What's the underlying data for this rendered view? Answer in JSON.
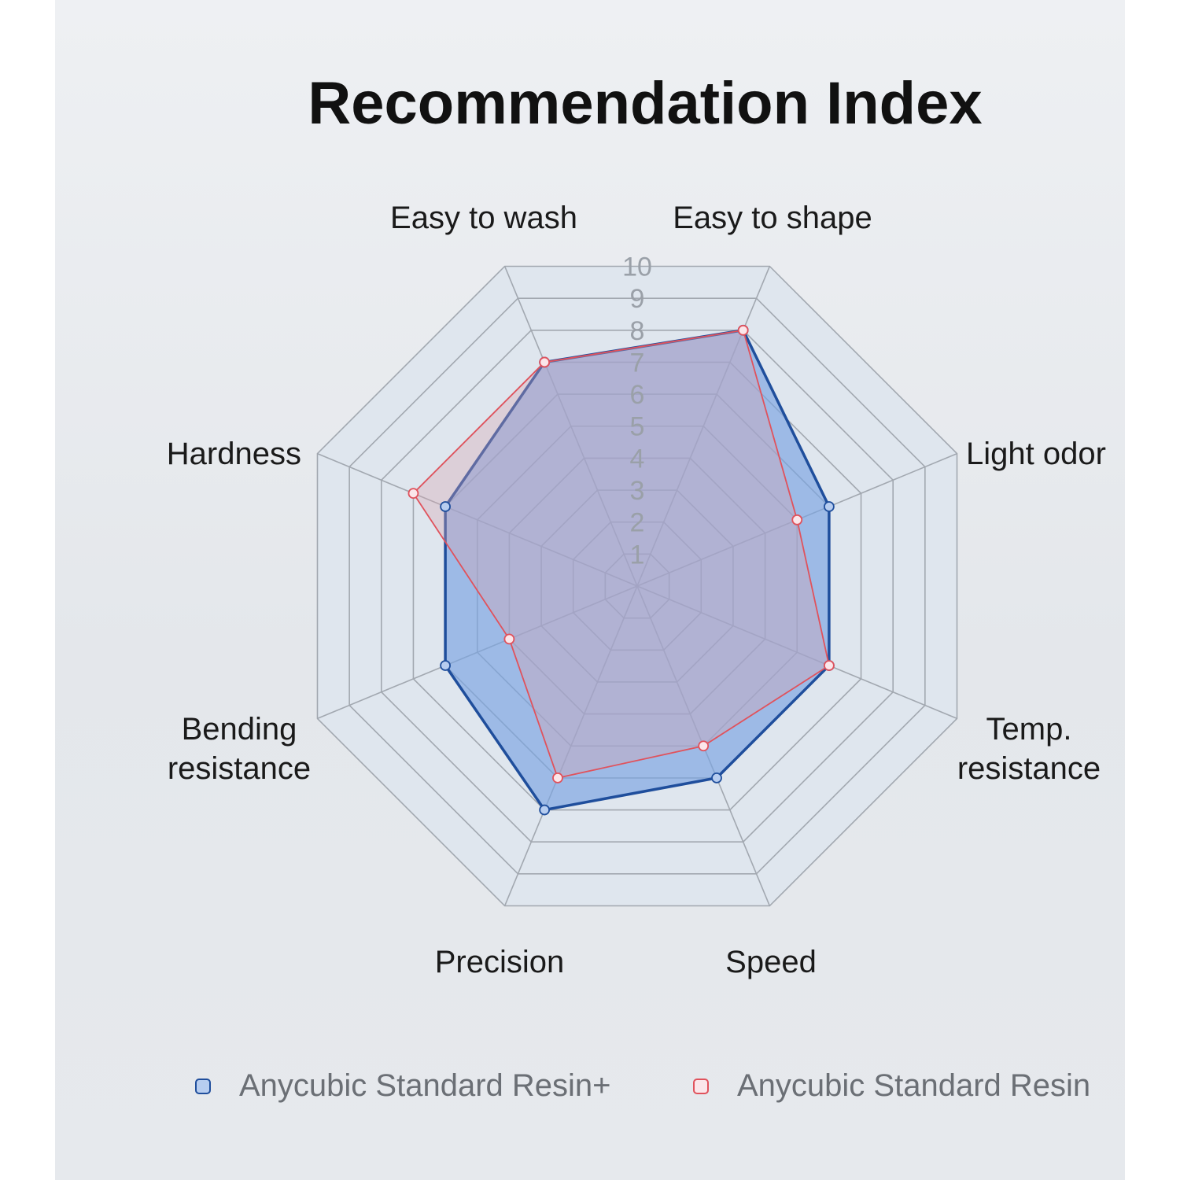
{
  "chart_data": {
    "type": "radar",
    "title": "Recommendation Index",
    "axes": [
      "Easy to wash",
      "Easy to shape",
      "Light odor",
      "Temp. resistance",
      "Speed",
      "Precision",
      "Bending resistance",
      "Hardness"
    ],
    "tick_labels": [
      "1",
      "2",
      "3",
      "4",
      "5",
      "6",
      "7",
      "8",
      "9",
      "10"
    ],
    "range": [
      0,
      10
    ],
    "series": [
      {
        "name": "Anycubic Standard Resin+",
        "values": [
          7,
          8,
          6,
          6,
          6,
          7,
          6,
          6
        ],
        "color": "#1f4e9c",
        "fill": "#7aa3e2"
      },
      {
        "name": "Anycubic Standard Resin",
        "values": [
          7,
          8,
          5,
          6,
          5,
          6,
          4,
          7
        ],
        "color": "#e0525c",
        "fill": "#d6a3b0"
      }
    ],
    "legend_position": "bottom"
  },
  "colors": {
    "grid_fill": "#dfe6ee",
    "grid_line": "#a2a8b0",
    "background": "#e8eaed"
  }
}
